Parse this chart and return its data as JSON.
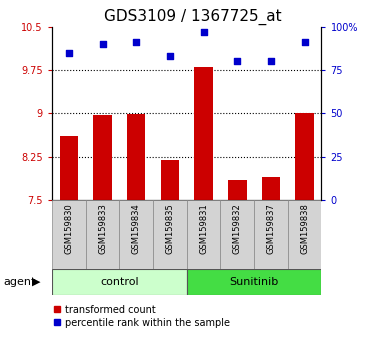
{
  "title": "GDS3109 / 1367725_at",
  "samples": [
    "GSM159830",
    "GSM159833",
    "GSM159834",
    "GSM159835",
    "GSM159831",
    "GSM159832",
    "GSM159837",
    "GSM159838"
  ],
  "bar_values": [
    8.6,
    8.97,
    8.98,
    8.2,
    9.8,
    7.85,
    7.9,
    9.0
  ],
  "scatter_values": [
    85,
    90,
    91,
    83,
    97,
    80,
    80,
    91
  ],
  "ylim_left": [
    7.5,
    10.5
  ],
  "ylim_right": [
    0,
    100
  ],
  "yticks_left": [
    7.5,
    8.25,
    9.0,
    9.75,
    10.5
  ],
  "ytick_labels_left": [
    "7.5",
    "8.25",
    "9",
    "9.75",
    "10.5"
  ],
  "yticks_right": [
    0,
    25,
    50,
    75,
    100
  ],
  "ytick_labels_right": [
    "0",
    "25",
    "50",
    "75",
    "100%"
  ],
  "hlines": [
    8.25,
    9.0,
    9.75
  ],
  "bar_color": "#cc0000",
  "scatter_color": "#0000cc",
  "bar_bottom": 7.5,
  "control_color": "#ccffcc",
  "sunitinib_color": "#44dd44",
  "group_label": "agent",
  "control_label": "control",
  "sunitinib_label": "Sunitinib",
  "legend_bar_label": "transformed count",
  "legend_scatter_label": "percentile rank within the sample",
  "left_tick_color": "#cc0000",
  "right_tick_color": "#0000cc",
  "tick_label_fontsize": 7,
  "title_fontsize": 11,
  "sample_label_fontsize": 6,
  "group_label_fontsize": 8
}
